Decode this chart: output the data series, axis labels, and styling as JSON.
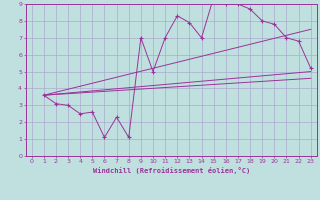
{
  "xlabel": "Windchill (Refroidissement éolien,°C)",
  "xlim": [
    -0.5,
    23.5
  ],
  "ylim": [
    0,
    9
  ],
  "xticks": [
    0,
    1,
    2,
    3,
    4,
    5,
    6,
    7,
    8,
    9,
    10,
    11,
    12,
    13,
    14,
    15,
    16,
    17,
    18,
    19,
    20,
    21,
    22,
    23
  ],
  "yticks": [
    0,
    1,
    2,
    3,
    4,
    5,
    6,
    7,
    8,
    9
  ],
  "bg_color": "#c0e0e0",
  "line_color": "#993399",
  "grid_color": "#aaaacc",
  "curve1_x": [
    1,
    2,
    3,
    4,
    5,
    6,
    7,
    8,
    9,
    10,
    11,
    12,
    13,
    14,
    15,
    16,
    17,
    18,
    19,
    20,
    21,
    22,
    23
  ],
  "curve1_y": [
    3.6,
    3.1,
    3.0,
    2.5,
    2.6,
    1.1,
    2.3,
    1.1,
    7.0,
    5.0,
    7.0,
    8.3,
    7.9,
    7.0,
    9.4,
    9.0,
    9.0,
    8.7,
    8.0,
    7.8,
    7.0,
    6.8,
    5.2
  ],
  "line1_x": [
    1,
    23
  ],
  "line1_y": [
    3.6,
    7.5
  ],
  "line2_x": [
    1,
    23
  ],
  "line2_y": [
    3.6,
    5.0
  ],
  "line3_x": [
    1,
    23
  ],
  "line3_y": [
    3.6,
    4.6
  ]
}
